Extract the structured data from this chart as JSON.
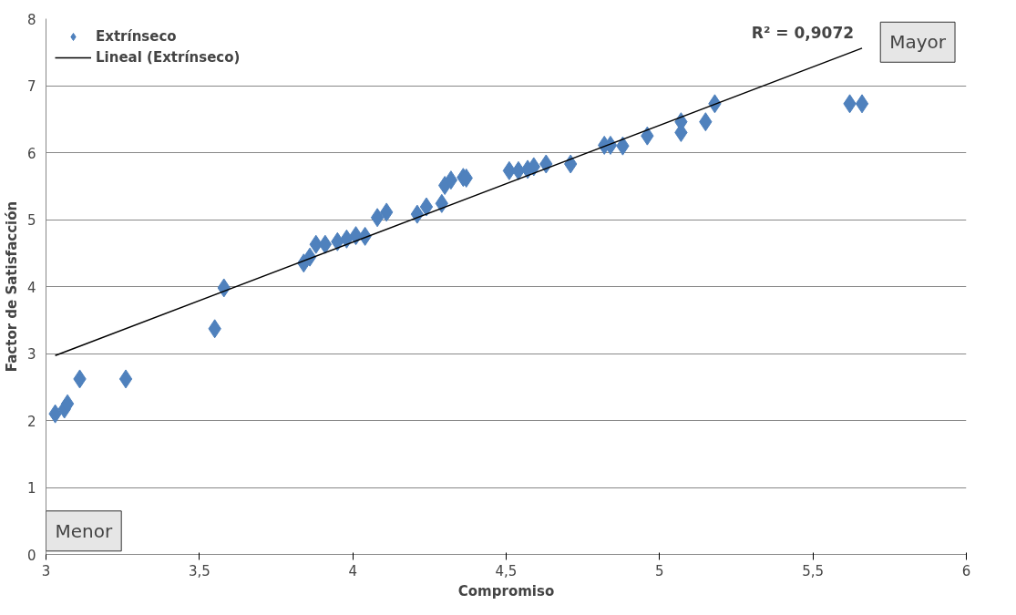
{
  "chart_data": {
    "type": "scatter",
    "xlabel": "Compromiso",
    "ylabel": "Factor de Satisfacción",
    "xlim": [
      3,
      6
    ],
    "ylim": [
      0,
      8
    ],
    "xticks": [
      3,
      {
        "value": 3.5,
        "label": "3,5"
      },
      4,
      {
        "value": 4.5,
        "label": "4,5"
      },
      5,
      {
        "value": 5.5,
        "label": "5,5"
      },
      6
    ],
    "yticks": [
      0,
      1,
      2,
      3,
      4,
      5,
      6,
      7,
      8
    ],
    "grid": "y",
    "legend": "top left",
    "series": [
      {
        "name": "Extrínseco",
        "marker": "diamond",
        "color": "#4f81bd",
        "x": [
          3.03,
          3.06,
          3.07,
          3.11,
          3.26,
          3.55,
          3.58,
          3.84,
          3.86,
          3.88,
          3.91,
          3.95,
          3.98,
          4.01,
          4.04,
          4.08,
          4.11,
          4.21,
          4.24,
          4.29,
          4.3,
          4.32,
          4.36,
          4.37,
          4.51,
          4.54,
          4.57,
          4.59,
          4.63,
          4.71,
          4.82,
          4.84,
          4.88,
          4.96,
          5.07,
          5.07,
          5.15,
          5.18,
          5.62,
          5.66
        ],
        "values": [
          2.1,
          2.17,
          2.25,
          2.62,
          2.62,
          3.37,
          3.98,
          4.35,
          4.44,
          4.63,
          4.63,
          4.67,
          4.71,
          4.76,
          4.75,
          5.03,
          5.11,
          5.08,
          5.19,
          5.24,
          5.51,
          5.59,
          5.63,
          5.62,
          5.73,
          5.73,
          5.75,
          5.79,
          5.83,
          5.83,
          6.11,
          6.11,
          6.1,
          6.25,
          6.3,
          6.46,
          6.46,
          6.73,
          6.73,
          6.73
        ]
      },
      {
        "name": "Lineal (Extrínseco)",
        "type": "line",
        "color": "#000000",
        "line_style": "solid",
        "x": [
          3.03,
          5.66
        ],
        "values": [
          2.97,
          7.56
        ]
      }
    ],
    "annotations": [
      "R² = 0,9072",
      "Menor",
      "Mayor"
    ]
  }
}
